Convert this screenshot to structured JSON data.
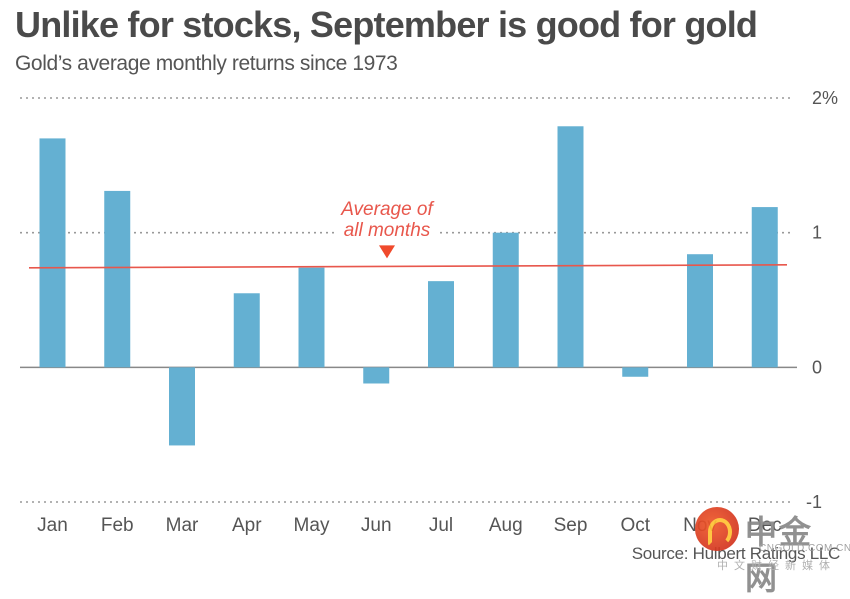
{
  "chart_data": {
    "type": "bar",
    "title": "Unlike for stocks, September is good for gold",
    "subtitle": "Gold’s average monthly returns since 1973",
    "xlabel": "",
    "ylabel": "",
    "categories": [
      "Jan",
      "Feb",
      "Mar",
      "Apr",
      "May",
      "Jun",
      "Jul",
      "Aug",
      "Sep",
      "Oct",
      "Nov",
      "Dec"
    ],
    "values": [
      1.7,
      1.31,
      -0.58,
      0.55,
      0.74,
      -0.12,
      0.64,
      1.0,
      1.79,
      -0.07,
      0.84,
      1.19
    ],
    "ylim": [
      -1,
      2
    ],
    "yticks": [
      {
        "value": 2,
        "label": "2%"
      },
      {
        "value": 1,
        "label": "1"
      },
      {
        "value": 0,
        "label": "0"
      },
      {
        "value": -1,
        "label": "-1"
      }
    ],
    "grid": true,
    "reference_line": {
      "value": 0.75,
      "label_line1": "Average of",
      "label_line2": "all months"
    },
    "colors": {
      "bar": "#64b0d2",
      "average": "#e8574c",
      "grid": "#999999",
      "zero": "#888888"
    },
    "source": "Source: Hulbert Ratings LLC"
  },
  "watermark": {
    "name": "中金网",
    "url": "CNGOLD.COM.CN",
    "tagline": "中文财经新媒体"
  }
}
